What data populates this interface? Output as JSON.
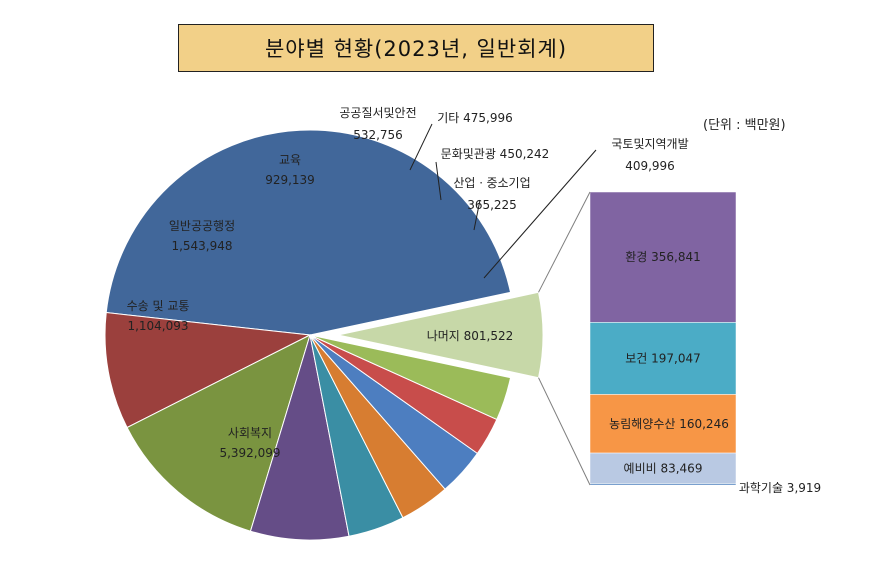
{
  "chart_data": {
    "type": "pie",
    "title": "분야별 현황(2023년, 일반회계)",
    "unit_note": "(단위 : 백만원)",
    "slices": [
      {
        "name": "사회복지",
        "value": 5392099,
        "value_label": "5,392,099",
        "color": "#41679a"
      },
      {
        "name": "수송 및 교통",
        "value": 1104093,
        "value_label": "1,104,093",
        "color": "#9b403d"
      },
      {
        "name": "일반공공행정",
        "value": 1543948,
        "value_label": "1,543,948",
        "color": "#7a9440"
      },
      {
        "name": "교육",
        "value": 929139,
        "value_label": "929,139",
        "color": "#654d87"
      },
      {
        "name": "공공질서및안전",
        "value": 532756,
        "value_label": "532,756",
        "color": "#3a8ea4"
      },
      {
        "name": "기타",
        "value": 475996,
        "value_label": "475,996",
        "color": "#d77d31"
      },
      {
        "name": "문화및관광",
        "value": 450242,
        "value_label": "450,242",
        "color": "#4d7ec0"
      },
      {
        "name": "산업ㆍ중소기업",
        "value": 365225,
        "value_label": "365,225",
        "color": "#c84d4b"
      },
      {
        "name": "국토및지역개발",
        "value": 409996,
        "value_label": "409,996",
        "color": "#9bbb59"
      },
      {
        "name": "나머지",
        "value": 801522,
        "value_label": "801,522",
        "color": "#c7d8a8"
      }
    ],
    "breakdown": {
      "of": "나머지",
      "items": [
        {
          "name": "환경",
          "value": 356841,
          "value_label": "356,841",
          "color": "#8064a2"
        },
        {
          "name": "보건",
          "value": 197047,
          "value_label": "197,047",
          "color": "#4bacc6"
        },
        {
          "name": "농림해양수산",
          "value": 160246,
          "value_label": "160,246",
          "color": "#f79646"
        },
        {
          "name": "예비비",
          "value": 83469,
          "value_label": "83,469",
          "color": "#b9c9e3"
        },
        {
          "name": "과학기술",
          "value": 3919,
          "value_label": "3,919",
          "color": "#4f81bd"
        }
      ]
    }
  }
}
